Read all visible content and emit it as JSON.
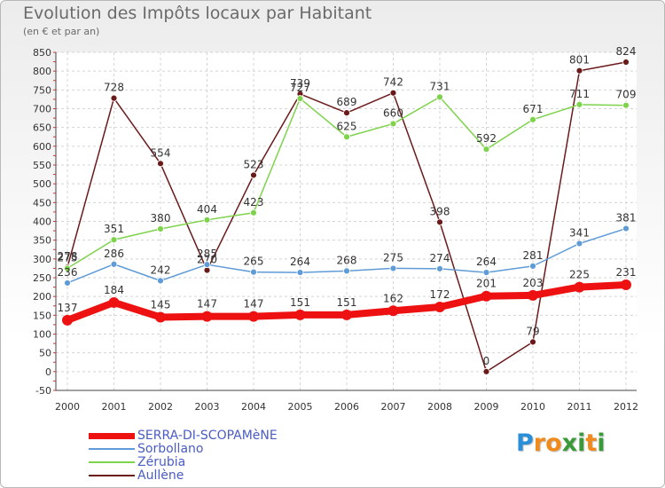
{
  "title": "Evolution des Impôts locaux par Habitant",
  "subtitle": "(en € et par an)",
  "logo": {
    "text": "Proxiti",
    "letters": [
      "P",
      "r",
      "o",
      "x",
      "i",
      "t",
      "i"
    ],
    "colors": [
      "#2a8fd8",
      "#f08a1c",
      "#f08a1c",
      "#3a9a3a",
      "#3a9a3a",
      "#f08a1c",
      "#3a9a3a"
    ]
  },
  "chart_data": {
    "type": "line",
    "x": [
      2000,
      2001,
      2002,
      2003,
      2004,
      2005,
      2006,
      2007,
      2008,
      2009,
      2010,
      2011,
      2012
    ],
    "ylim": [
      -50,
      850
    ],
    "yticks": [
      -50,
      0,
      50,
      100,
      150,
      200,
      250,
      300,
      350,
      400,
      450,
      500,
      550,
      600,
      650,
      700,
      750,
      800,
      850
    ],
    "grid": true,
    "legend_position": "bottom-left",
    "series": [
      {
        "name": "Aullène",
        "color": "#6b1a1a",
        "values": [
          278,
          728,
          554,
          270,
          523,
          739,
          689,
          742,
          398,
          0,
          79,
          801,
          824
        ],
        "labels": [
          "278",
          "728",
          "554",
          "270",
          "523",
          "739",
          "689",
          "742",
          "398",
          "0",
          "79",
          "801",
          "824"
        ]
      },
      {
        "name": "Zérubia",
        "color": "#7dd34a",
        "values": [
          275,
          351,
          380,
          404,
          423,
          727,
          625,
          660,
          731,
          592,
          671,
          711,
          709
        ],
        "labels": [
          "275",
          "351",
          "380",
          "404",
          "423",
          "727",
          "625",
          "660",
          "731",
          "592",
          "671",
          "711",
          "709"
        ]
      },
      {
        "name": "Sorbollano",
        "color": "#5f9bd6",
        "values": [
          236,
          286,
          242,
          285,
          265,
          264,
          268,
          275,
          274,
          264,
          281,
          341,
          381
        ],
        "labels": [
          "236",
          "286",
          "242",
          "285",
          "265",
          "264",
          "268",
          "275",
          "274",
          "264",
          "281",
          "341",
          "381"
        ]
      },
      {
        "name": "SERRA-DI-SCOPAMèNE",
        "color": "#ee1111",
        "values": [
          137,
          184,
          145,
          147,
          147,
          151,
          151,
          162,
          172,
          201,
          203,
          225,
          231
        ],
        "labels": [
          "137",
          "184",
          "145",
          "147",
          "147",
          "151",
          "151",
          "162",
          "172",
          "201",
          "203",
          "225",
          "231"
        ]
      }
    ]
  },
  "legend": [
    {
      "label": "SERRA-DI-SCOPAMèNE",
      "color": "#ee1111",
      "width": 7
    },
    {
      "label": "Sorbollano",
      "color": "#5f9bd6",
      "width": 2
    },
    {
      "label": "Zérubia",
      "color": "#7dd34a",
      "width": 2
    },
    {
      "label": "Aullène",
      "color": "#6b1a1a",
      "width": 2
    }
  ]
}
